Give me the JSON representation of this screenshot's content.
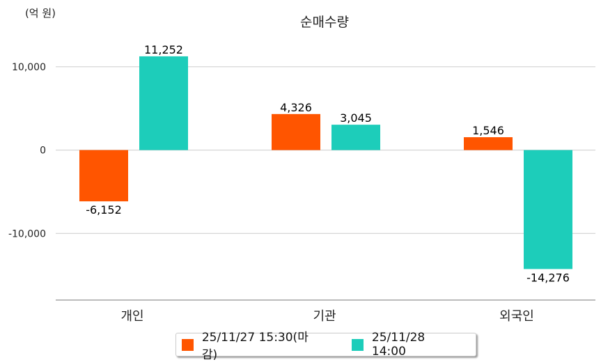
{
  "chart_data": {
    "type": "bar",
    "title": "순매수량",
    "unit_label": "(억 원)",
    "categories": [
      "개인",
      "기관",
      "외국인"
    ],
    "series": [
      {
        "name": "25/11/27 15:30(마감)",
        "color": "#FF5500",
        "values": [
          -6152,
          4326,
          1546
        ],
        "labels": [
          "-6,152",
          "4,326",
          "1,546"
        ]
      },
      {
        "name": "25/11/28 14:00",
        "color": "#1DCDBA",
        "values": [
          11252,
          3045,
          -14276
        ],
        "labels": [
          "11,252",
          "3,045",
          "-14,276"
        ]
      }
    ],
    "yticks": [
      10000,
      0,
      -10000
    ],
    "ytick_labels": [
      "10,000",
      "0",
      "-10,000"
    ],
    "ylim": [
      -18000,
      13000
    ],
    "grid": true,
    "legend_position": "bottom"
  }
}
